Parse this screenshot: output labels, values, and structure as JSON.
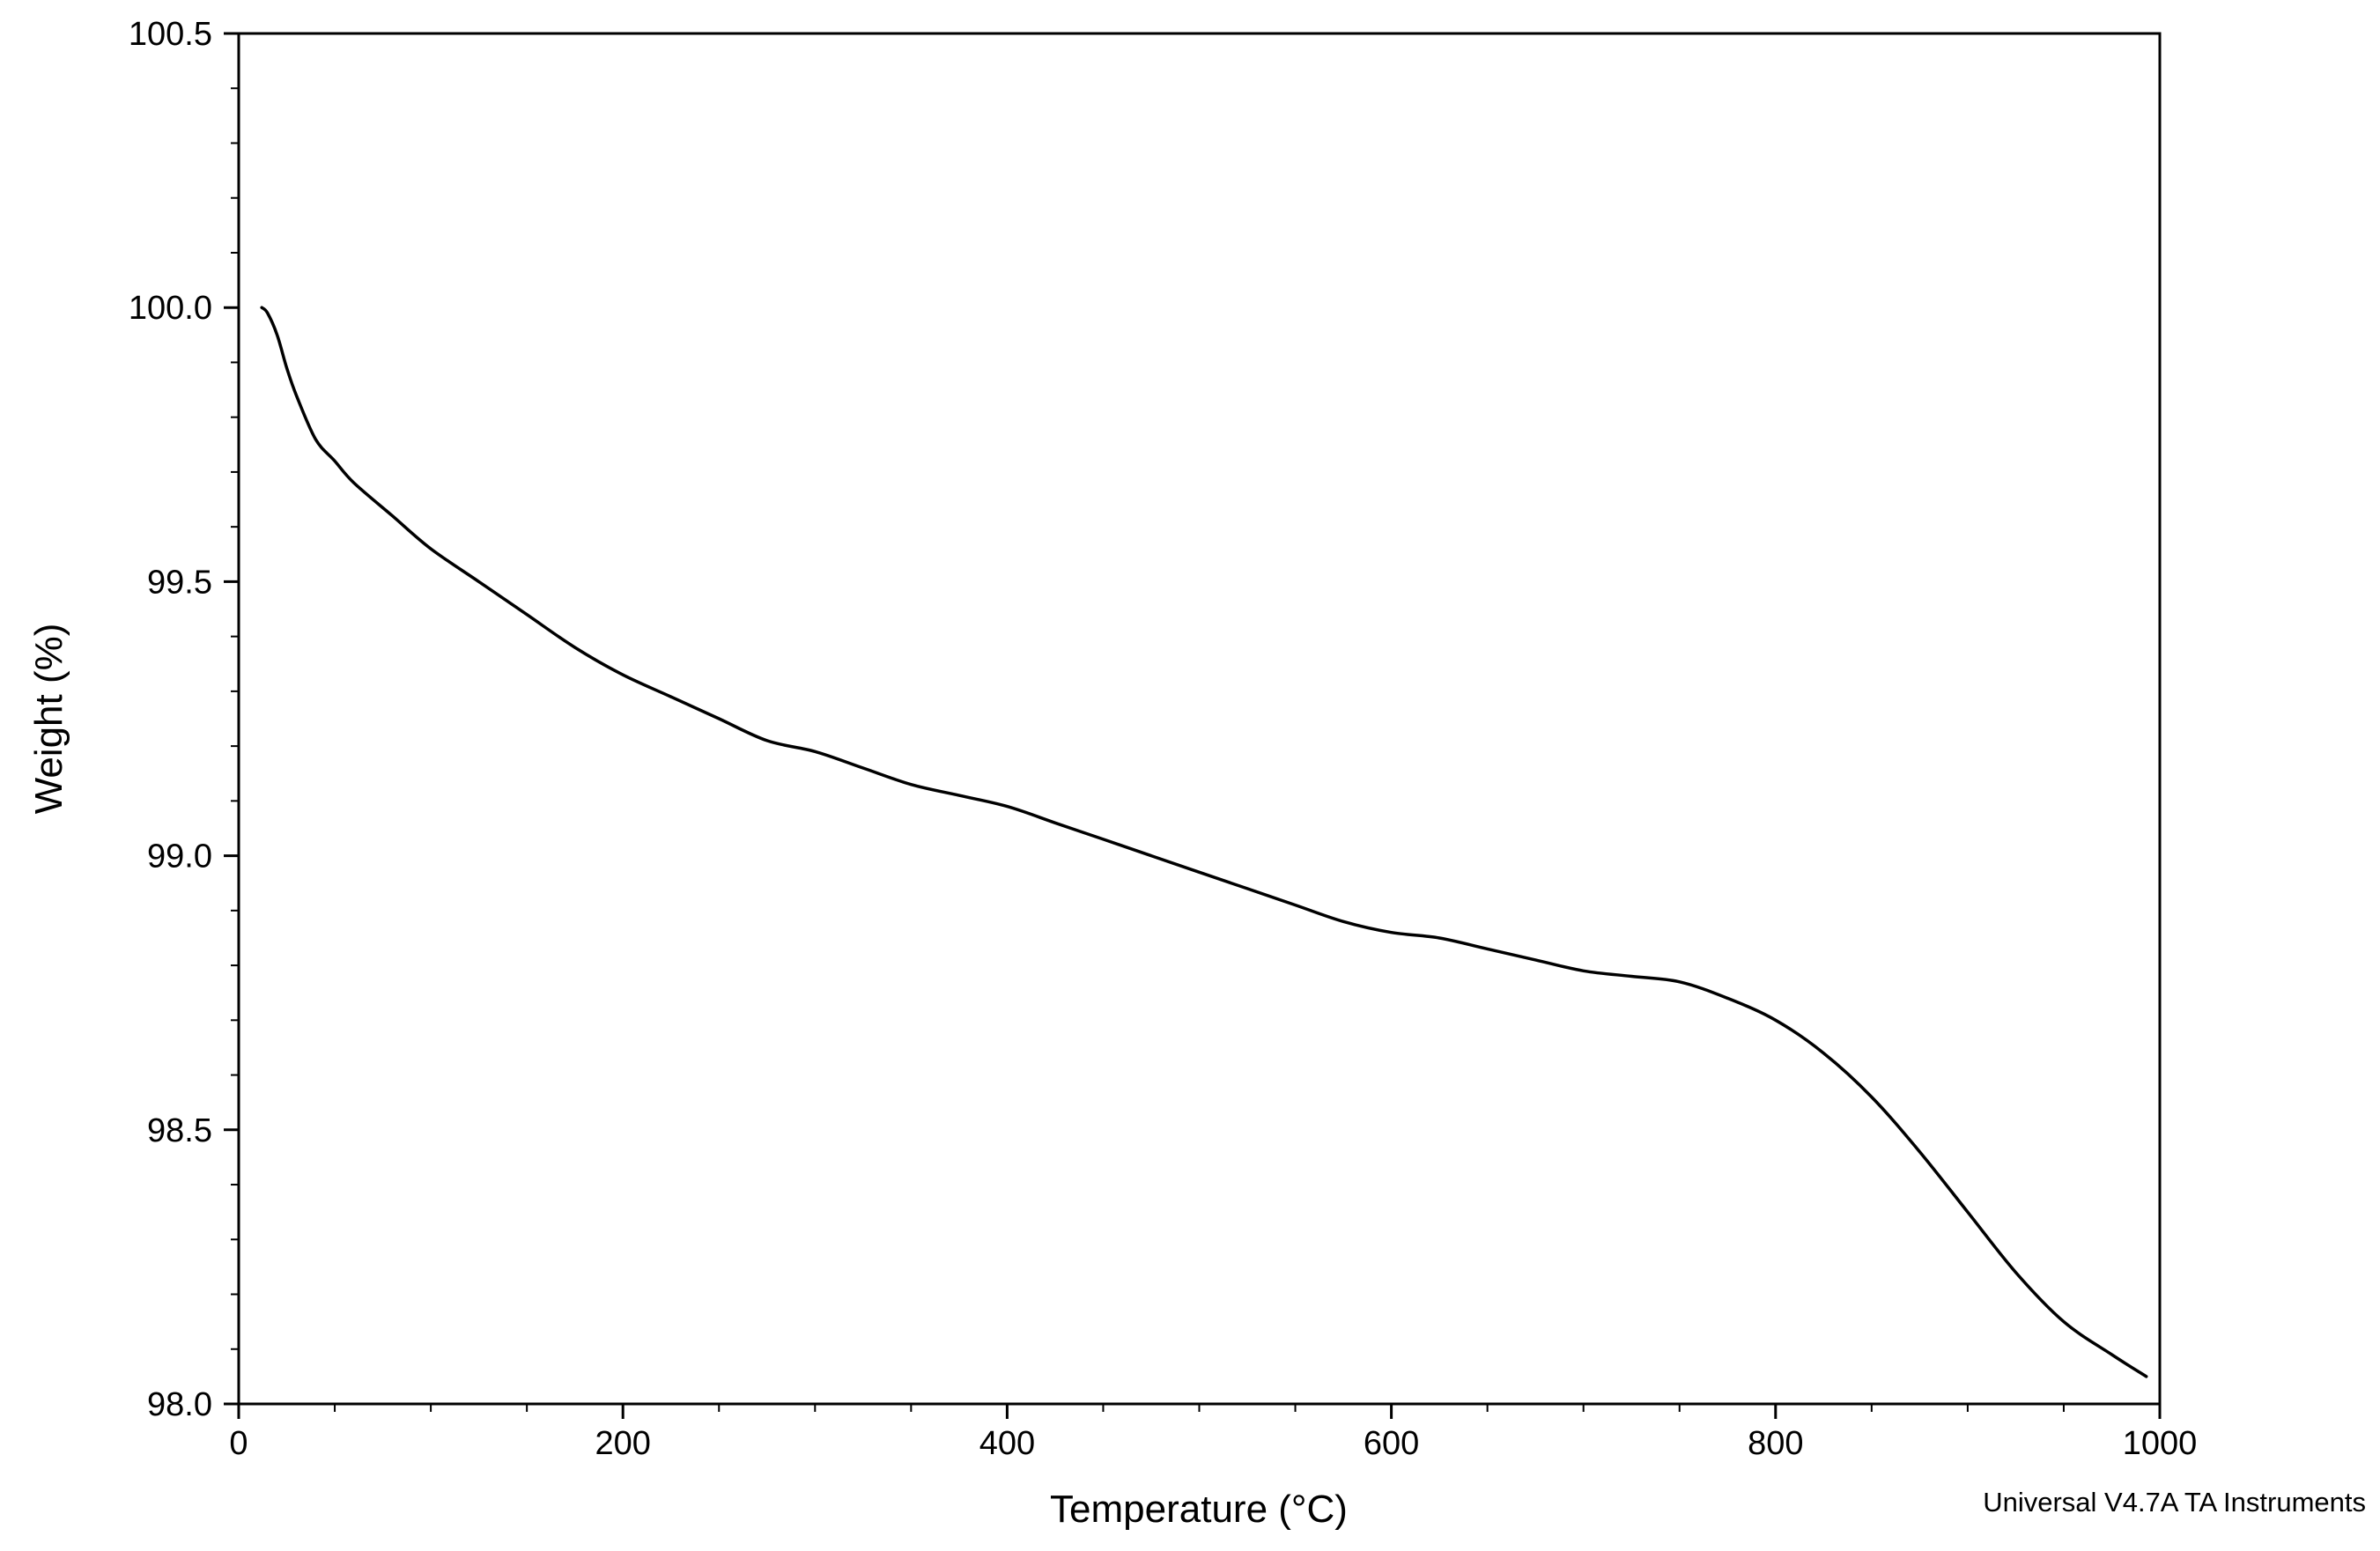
{
  "chart_data": {
    "type": "line",
    "xlabel": "Temperature (°C)",
    "ylabel": "Weight (%)",
    "xlim": [
      0,
      1000
    ],
    "ylim": [
      98.0,
      100.5
    ],
    "x_major_ticks": [
      0,
      200,
      400,
      600,
      800,
      1000
    ],
    "y_major_ticks": [
      98.0,
      98.5,
      99.0,
      99.5,
      100.0,
      100.5
    ],
    "x_tick_labels": [
      "0",
      "200",
      "400",
      "600",
      "800",
      "1000"
    ],
    "y_tick_labels": [
      "98.0",
      "98.5",
      "99.0",
      "99.5",
      "100.0",
      "100.5"
    ],
    "x_minor_step": 50,
    "y_minor_step": 0.1,
    "grid": false,
    "legend": "none",
    "line_color": "#000000",
    "series": [
      {
        "x": [
          12,
          15,
          20,
          25,
          30,
          40,
          50,
          60,
          80,
          100,
          125,
          150,
          175,
          200,
          225,
          250,
          275,
          300,
          325,
          350,
          375,
          400,
          425,
          450,
          475,
          500,
          525,
          550,
          575,
          600,
          625,
          650,
          675,
          700,
          725,
          750,
          775,
          800,
          825,
          850,
          875,
          900,
          925,
          950,
          975,
          993
        ],
        "y": [
          100.0,
          99.99,
          99.95,
          99.89,
          99.84,
          99.76,
          99.72,
          99.68,
          99.62,
          99.56,
          99.5,
          99.44,
          99.38,
          99.33,
          99.29,
          99.25,
          99.21,
          99.19,
          99.16,
          99.13,
          99.11,
          99.09,
          99.06,
          99.03,
          99.0,
          98.97,
          98.94,
          98.91,
          98.88,
          98.86,
          98.85,
          98.83,
          98.81,
          98.79,
          98.78,
          98.77,
          98.74,
          98.7,
          98.64,
          98.56,
          98.46,
          98.35,
          98.24,
          98.15,
          98.09,
          98.05
        ]
      }
    ]
  },
  "footer": {
    "software": "Universal V4.7A TA Instruments"
  }
}
